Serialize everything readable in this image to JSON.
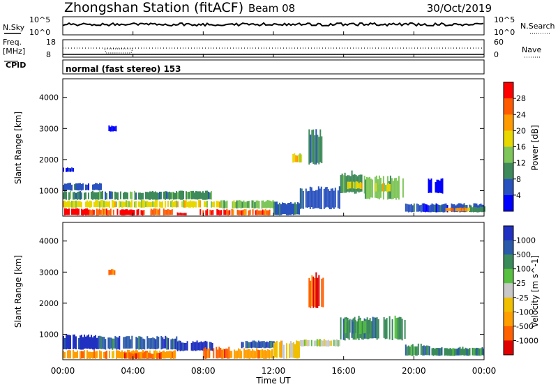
{
  "header": {
    "station": "Zhongshan Station (fitACF)",
    "beam": "Beam 08",
    "date": "30/Oct/2019"
  },
  "sky_panel": {
    "left_label": "N.Sky",
    "left_ticks": [
      "10^5",
      "10^0"
    ],
    "right_ticks": [
      "10^5",
      "10^0"
    ],
    "right_label": "N.Search"
  },
  "freq_panel": {
    "left_label_line1": "Freq.",
    "left_label_line2": "[MHz]",
    "left_ticks": [
      "18",
      "8"
    ],
    "right_ticks": [
      "60",
      "0"
    ],
    "right_label": "Nave"
  },
  "cpid": {
    "label": "CPID",
    "value": "normal (fast stereo) 153"
  },
  "x_axis": {
    "label": "Time UT",
    "ticks": [
      "00:00",
      "04:00",
      "08:00",
      "12:00",
      "16:00",
      "20:00",
      "00:00"
    ]
  },
  "colors": {
    "power_scale": [
      "#0000ff",
      "#2a52be",
      "#3e8a5a",
      "#7fc65a",
      "#e8d800",
      "#ff9a00",
      "#ff5a00",
      "#ff0000"
    ],
    "velocity_scale": [
      "#e00000",
      "#ff6000",
      "#ff9e00",
      "#f0c000",
      "#c8c8c8",
      "#58c040",
      "#3a8a5a",
      "#2b5aaa",
      "#2030c0"
    ]
  },
  "chart_data": [
    {
      "type": "heatmap",
      "name_label": "Power [dB]",
      "ylabel": "Slant Range [km]",
      "xlabel": "Time UT",
      "xlim": [
        0,
        24
      ],
      "ylim": [
        180,
        4600
      ],
      "yticks": [
        1000,
        2000,
        3000,
        4000
      ],
      "colorbar_ticks": [
        "4",
        "8",
        "12",
        "16",
        "20",
        "24",
        "28"
      ],
      "patches": [
        {
          "t0": 0.0,
          "t1": 1.5,
          "r0": 200,
          "r1": 450,
          "level": 7
        },
        {
          "t0": 1.5,
          "t1": 3.0,
          "r0": 200,
          "r1": 430,
          "level": 6
        },
        {
          "t0": 3.0,
          "t1": 5.0,
          "r0": 200,
          "r1": 420,
          "level": 7
        },
        {
          "t0": 5.0,
          "t1": 6.2,
          "r0": 200,
          "r1": 430,
          "level": 6
        },
        {
          "t0": 6.5,
          "t1": 7.0,
          "r0": 200,
          "r1": 300,
          "level": 7
        },
        {
          "t0": 7.8,
          "t1": 9.5,
          "r0": 200,
          "r1": 420,
          "level": 7
        },
        {
          "t0": 9.6,
          "t1": 11.8,
          "r0": 200,
          "r1": 410,
          "level": 6
        },
        {
          "t0": 0.0,
          "t1": 9.0,
          "r0": 450,
          "r1": 700,
          "level": 4
        },
        {
          "t0": 0.0,
          "t1": 8.5,
          "r0": 700,
          "r1": 1000,
          "level": 2
        },
        {
          "t0": 0.0,
          "t1": 2.2,
          "r0": 1000,
          "r1": 1250,
          "level": 1
        },
        {
          "t0": 9.0,
          "t1": 12.0,
          "r0": 420,
          "r1": 700,
          "level": 3
        },
        {
          "t0": 12.0,
          "t1": 13.5,
          "r0": 200,
          "r1": 650,
          "level": 1
        },
        {
          "t0": 13.5,
          "t1": 15.8,
          "r0": 400,
          "r1": 1150,
          "level": 1
        },
        {
          "t0": 14.0,
          "t1": 14.8,
          "r0": 1800,
          "r1": 3000,
          "level": 2
        },
        {
          "t0": 13.0,
          "t1": 13.6,
          "r0": 1900,
          "r1": 2200,
          "level": 4
        },
        {
          "t0": 15.8,
          "t1": 17.2,
          "r0": 900,
          "r1": 1650,
          "level": 2
        },
        {
          "t0": 16.2,
          "t1": 17.0,
          "r0": 1050,
          "r1": 1300,
          "level": 4
        },
        {
          "t0": 17.2,
          "t1": 19.5,
          "r0": 700,
          "r1": 1500,
          "level": 3
        },
        {
          "t0": 17.8,
          "t1": 18.6,
          "r0": 950,
          "r1": 1250,
          "level": 4
        },
        {
          "t0": 19.5,
          "t1": 21.0,
          "r0": 300,
          "r1": 600,
          "level": 1
        },
        {
          "t0": 21.0,
          "t1": 24.0,
          "r0": 300,
          "r1": 600,
          "level": 1
        },
        {
          "t0": 21.8,
          "t1": 23.2,
          "r0": 330,
          "r1": 470,
          "level": 5
        },
        {
          "t0": 23.2,
          "t1": 24.0,
          "r0": 300,
          "r1": 500,
          "level": 2
        },
        {
          "t0": 2.6,
          "t1": 3.0,
          "r0": 2900,
          "r1": 3100,
          "level": 0
        },
        {
          "t0": 0.0,
          "t1": 0.6,
          "r0": 1600,
          "r1": 1750,
          "level": 0
        },
        {
          "t0": 20.8,
          "t1": 21.6,
          "r0": 900,
          "r1": 1400,
          "level": 0
        }
      ]
    },
    {
      "type": "heatmap",
      "name_label": "Velocity [m s^-1]",
      "ylabel": "Slant Range [km]",
      "xlabel": "Time UT",
      "xlim": [
        0,
        24
      ],
      "ylim": [
        180,
        4600
      ],
      "yticks": [
        1000,
        2000,
        3000,
        4000
      ],
      "colorbar_ticks": [
        "1000",
        "500",
        "100",
        "25",
        "-25",
        "-100",
        "-500",
        "-1000"
      ],
      "patches": [
        {
          "t0": 0.0,
          "t1": 2.0,
          "r0": 500,
          "r1": 1000,
          "level": 8
        },
        {
          "t0": 2.0,
          "t1": 6.5,
          "r0": 500,
          "r1": 950,
          "level": 7
        },
        {
          "t0": 0.0,
          "t1": 6.5,
          "r0": 200,
          "r1": 500,
          "level": 2
        },
        {
          "t0": 3.5,
          "t1": 5.5,
          "r0": 200,
          "r1": 420,
          "level": 1
        },
        {
          "t0": 6.5,
          "t1": 8.5,
          "r0": 450,
          "r1": 800,
          "level": 8
        },
        {
          "t0": 8.0,
          "t1": 9.5,
          "r0": 200,
          "r1": 600,
          "level": 1
        },
        {
          "t0": 9.5,
          "t1": 12.0,
          "r0": 200,
          "r1": 550,
          "level": 2
        },
        {
          "t0": 10.0,
          "t1": 12.2,
          "r0": 550,
          "r1": 800,
          "level": 7
        },
        {
          "t0": 12.0,
          "t1": 13.5,
          "r0": 200,
          "r1": 800,
          "level": 3
        },
        {
          "t0": 13.5,
          "t1": 15.8,
          "r0": 600,
          "r1": 850,
          "level": 4
        },
        {
          "t0": 14.0,
          "t1": 14.8,
          "r0": 1800,
          "r1": 3000,
          "level": 1
        },
        {
          "t0": 15.8,
          "t1": 19.5,
          "r0": 800,
          "r1": 1600,
          "level": 6
        },
        {
          "t0": 16.0,
          "t1": 17.5,
          "r0": 1000,
          "r1": 1500,
          "level": 6
        },
        {
          "t0": 19.5,
          "t1": 21.0,
          "r0": 300,
          "r1": 700,
          "level": 6
        },
        {
          "t0": 21.0,
          "t1": 24.0,
          "r0": 300,
          "r1": 600,
          "level": 6
        },
        {
          "t0": 2.6,
          "t1": 3.0,
          "r0": 2900,
          "r1": 3100,
          "level": 1
        }
      ]
    }
  ]
}
